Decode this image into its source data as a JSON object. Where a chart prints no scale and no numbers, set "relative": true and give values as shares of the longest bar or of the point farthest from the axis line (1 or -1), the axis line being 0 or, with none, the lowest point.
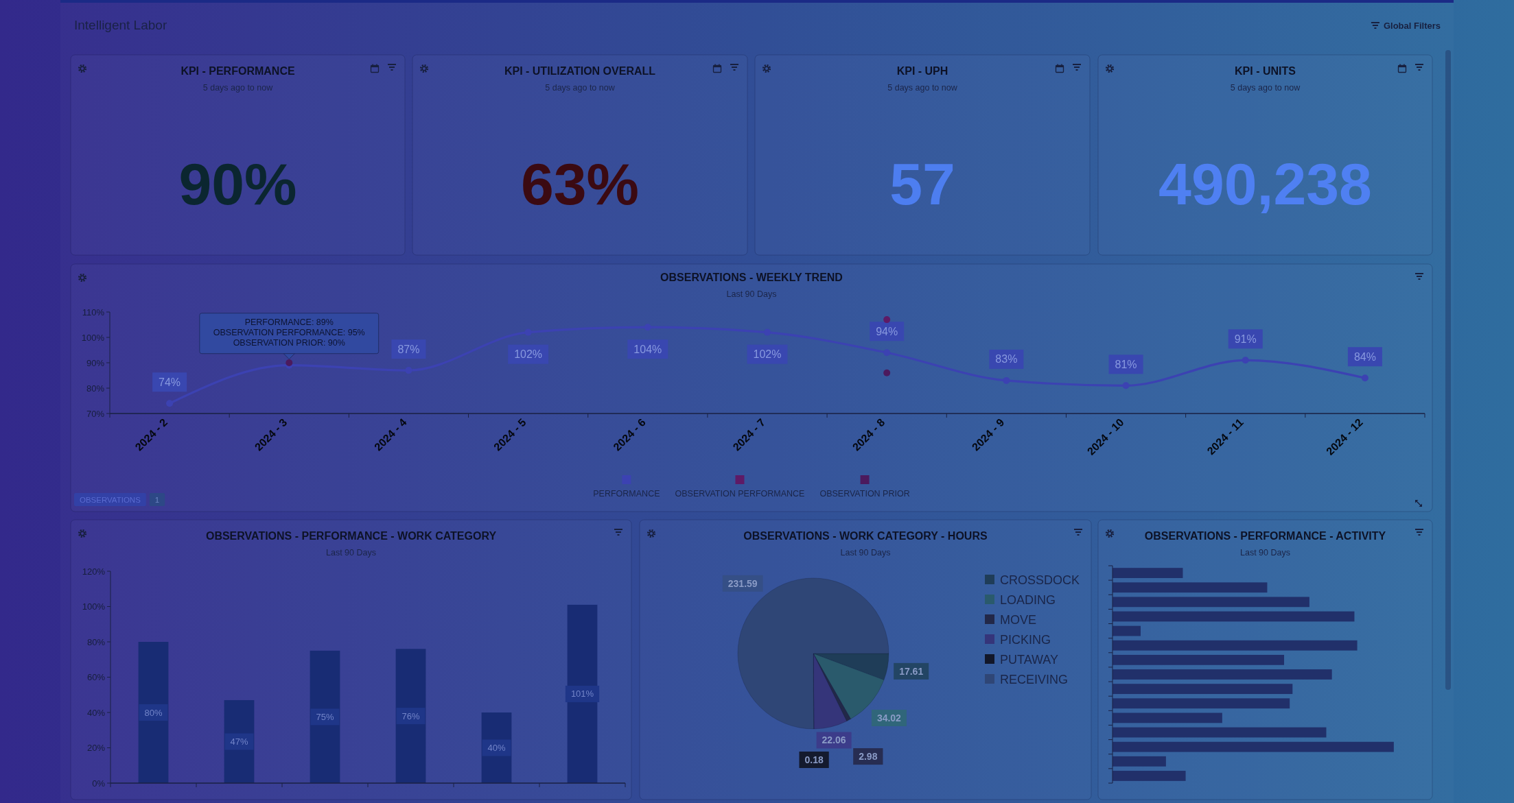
{
  "chart_data": [
    {
      "type": "other",
      "title": "Intelligent Labor",
      "annotations": [
        "Global Filters"
      ]
    },
    {
      "type": "other",
      "title": "KPI - PERFORMANCE",
      "subtitle": "5 days ago to now",
      "annotations": [
        "90%"
      ],
      "color": "#0b2630"
    },
    {
      "type": "other",
      "title": "KPI - UTILIZATION OVERALL",
      "subtitle": "5 days ago to now",
      "annotations": [
        "63%"
      ],
      "color": "#3b0a12"
    },
    {
      "type": "other",
      "title": "KPI - UPH",
      "subtitle": "5 days ago to now",
      "annotations": [
        "57"
      ],
      "color": "#4d7ef0"
    },
    {
      "type": "other",
      "title": "KPI - UNITS",
      "subtitle": "5 days ago to now",
      "annotations": [
        "490,238"
      ],
      "color": "#4f80f2"
    },
    {
      "type": "line",
      "title": "OBSERVATIONS - WEEKLY TREND",
      "subtitle": "Last 90 Days",
      "categories": [
        "2024 - 2",
        "2024 - 3",
        "2024 - 4",
        "2024 - 5",
        "2024 - 6",
        "2024 - 7",
        "2024 - 8",
        "2024 - 9",
        "2024 - 10",
        "2024 - 11",
        "2024 - 12"
      ],
      "series": [
        {
          "name": "PERFORMANCE",
          "color": "#3c42b2",
          "values": [
            74,
            89,
            87,
            102,
            104,
            102,
            94,
            83,
            81,
            91,
            84
          ],
          "value_labels": [
            "74%",
            null,
            "87%",
            "102%",
            "104%",
            "102%",
            "94%",
            "83%",
            "81%",
            "91%",
            "84%"
          ]
        },
        {
          "name": "OBSERVATION PERFORMANCE",
          "type": "scatter",
          "color": "#5e1a66",
          "values": [
            null,
            null,
            null,
            null,
            null,
            null,
            107,
            null,
            null,
            null,
            null
          ]
        },
        {
          "name": "OBSERVATION PRIOR",
          "type": "scatter",
          "color": "#4b1a5e",
          "values": [
            null,
            90,
            null,
            null,
            null,
            null,
            86,
            null,
            null,
            null,
            null
          ]
        }
      ],
      "ylim": [
        70,
        110
      ],
      "yticks": [
        {
          "value": 70,
          "label": "70%"
        },
        {
          "value": 80,
          "label": "80%"
        },
        {
          "value": 90,
          "label": "90%"
        },
        {
          "value": 100,
          "label": "100%"
        },
        {
          "value": 110,
          "label": "110%"
        }
      ],
      "marker": "circle",
      "legend": "bottom",
      "annotations": [
        {
          "text": "PERFORMANCE: 89%\nOBSERVATION PERFORMANCE: 95%\nOBSERVATION PRIOR: 90%",
          "x": "2024 - 3",
          "y": 89
        },
        "OBSERVATIONS",
        "1"
      ]
    },
    {
      "type": "bar",
      "title": "OBSERVATIONS - PERFORMANCE - WORK CATEGORY",
      "subtitle": "Last 90 Days",
      "categories": [
        null,
        null,
        null,
        null,
        null,
        null
      ],
      "values": [
        80,
        47,
        75,
        76,
        40,
        101
      ],
      "value_labels": [
        "80%",
        "47%",
        "75%",
        "76%",
        "40%",
        "101%"
      ],
      "color": "#182c74",
      "ylim": [
        0,
        120
      ],
      "yticks": [
        {
          "value": 0,
          "label": "0%"
        },
        {
          "value": 20,
          "label": "20%"
        },
        {
          "value": 40,
          "label": "40%"
        },
        {
          "value": 60,
          "label": "60%"
        },
        {
          "value": 80,
          "label": "80%"
        },
        {
          "value": 100,
          "label": "100%"
        },
        {
          "value": 120,
          "label": "120%"
        }
      ]
    },
    {
      "type": "pie",
      "title": "OBSERVATIONS - WORK CATEGORY - HOURS",
      "subtitle": "Last 90 Days",
      "categories": [
        "CROSSDOCK",
        "LOADING",
        "MOVE",
        "PICKING",
        "PUTAWAY",
        "RECEIVING"
      ],
      "values": [
        17.61,
        34.02,
        2.98,
        22.06,
        0.18,
        231.59
      ],
      "colors": [
        "#1f3d58",
        "#2a5a6c",
        "#222848",
        "#35357a",
        "#121729",
        "#2f4676"
      ],
      "data_labels": true,
      "legend": "top right"
    },
    {
      "type": "bar",
      "orientation": "horizontal",
      "title": "OBSERVATIONS - PERFORMANCE - ACTIVITY",
      "subtitle": "Last 90 Days",
      "categories": [
        null,
        null,
        null,
        null,
        null,
        null,
        null,
        null,
        null,
        null,
        null,
        null,
        null,
        null,
        null
      ],
      "values": [
        0.25,
        0.55,
        0.7,
        0.86,
        0.1,
        0.87,
        0.61,
        0.78,
        0.64,
        0.63,
        0.39,
        0.76,
        1,
        0.19,
        0.26
      ],
      "relative": true,
      "color": "#21306a"
    }
  ]
}
